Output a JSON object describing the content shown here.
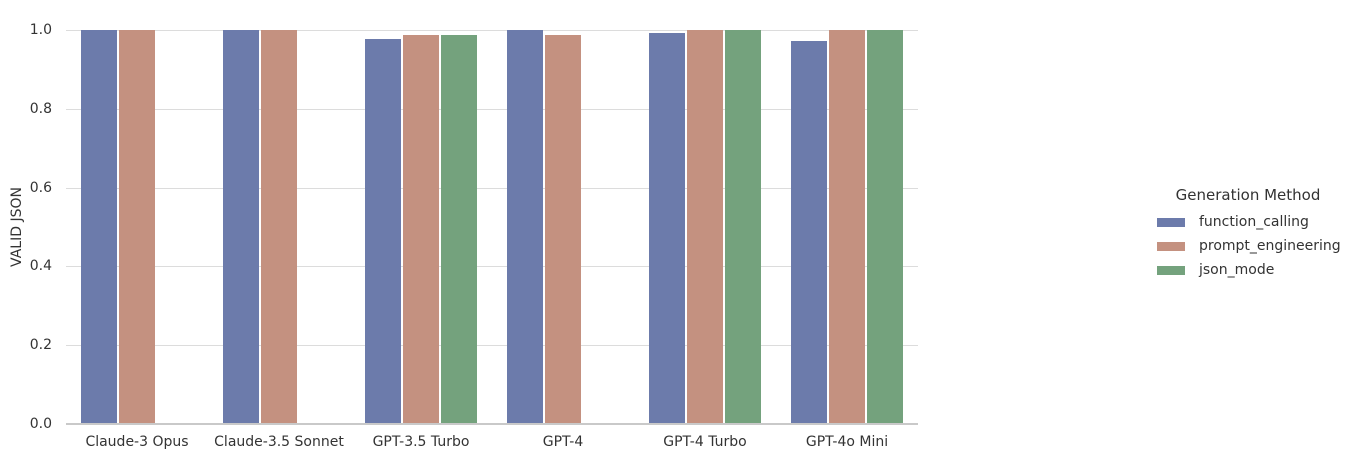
{
  "figure": {
    "background": "#ffffff",
    "grid_color": "#dcdcdc",
    "axis_line_color": "#c9c9c9",
    "text_color": "#333333"
  },
  "axes": {
    "ylabel": "VALID JSON",
    "yticks": [
      {
        "label": "0.0",
        "value": 0.0
      },
      {
        "label": "0.2",
        "value": 0.2
      },
      {
        "label": "0.4",
        "value": 0.4
      },
      {
        "label": "0.6",
        "value": 0.6
      },
      {
        "label": "0.8",
        "value": 0.8
      },
      {
        "label": "1.0",
        "value": 1.0
      }
    ]
  },
  "legend": {
    "title": "Generation Method"
  },
  "chart_data": {
    "type": "bar",
    "title": "",
    "xlabel": "",
    "ylabel": "VALID JSON",
    "ylim": [
      0,
      1.0
    ],
    "yticks": [
      0,
      0.2,
      0.4,
      0.6,
      0.8,
      1.0
    ],
    "grid": true,
    "legend_position": "right",
    "legend_title": "Generation Method",
    "categories": [
      "Claude-3 Opus",
      "Claude-3.5 Sonnet",
      "GPT-3.5 Turbo",
      "GPT-4",
      "GPT-4 Turbo",
      "GPT-4o Mini"
    ],
    "series": [
      {
        "name": "function_calling",
        "color": "#6c7bab",
        "values": [
          1.0,
          1.0,
          0.978,
          1.0,
          0.992,
          0.973
        ]
      },
      {
        "name": "prompt_engineering",
        "color": "#c49180",
        "values": [
          1.0,
          1.0,
          0.988,
          0.987,
          1.0,
          1.0
        ]
      },
      {
        "name": "json_mode",
        "color": "#74a27d",
        "values": [
          null,
          null,
          0.987,
          null,
          1.0,
          1.0
        ]
      }
    ]
  }
}
